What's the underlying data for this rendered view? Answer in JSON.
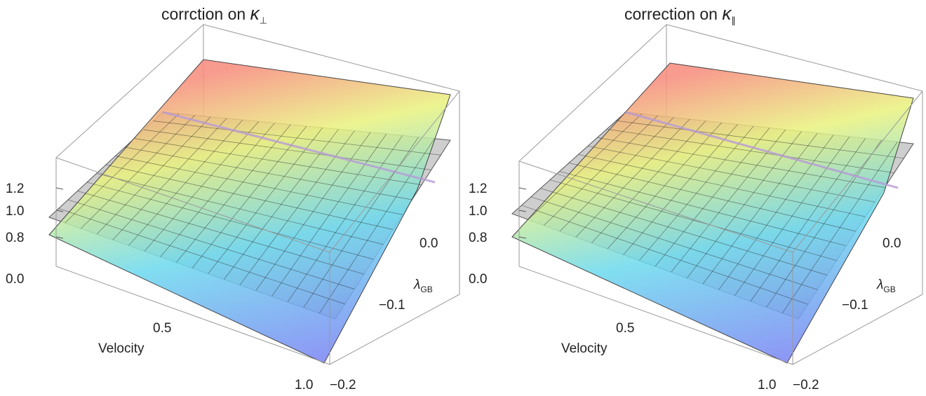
{
  "chart_data": [
    {
      "type": "surface3d",
      "title": "corrction on ",
      "title_symbol": "κ",
      "title_subscript": "⊥",
      "xlabel": "Velocity",
      "ylabel": "λ",
      "ylabel_subscript": "GB",
      "xlim": [
        0,
        1
      ],
      "ylim": [
        -0.2,
        0.05
      ],
      "zlim": [
        0.6,
        1.35
      ],
      "x_ticks": [
        "0.0",
        "0.5",
        "1.0"
      ],
      "y_ticks": [
        "0.0",
        "−0.1",
        "−0.2"
      ],
      "z_ticks": [
        "0.8",
        "1.0",
        "1.2"
      ],
      "reference_plane_z": 1.0,
      "surface_corners": {
        "v0_lminus0.2": 0.72,
        "v0_l0.05": 1.24,
        "v1_lminus0.2": 0.65,
        "v1_l0.05": 1.3
      },
      "colormap": [
        "#7b79f4",
        "#6bd9ee",
        "#e9f27d",
        "#f78a7b"
      ]
    },
    {
      "type": "surface3d",
      "title": "correction on ",
      "title_symbol": "κ",
      "title_subscript": "∥",
      "xlabel": "Velocity",
      "ylabel": "λ",
      "ylabel_subscript": "GB",
      "xlim": [
        0,
        1
      ],
      "ylim": [
        -0.2,
        0.05
      ],
      "zlim": [
        0.6,
        1.35
      ],
      "x_ticks": [
        "0.0",
        "0.5",
        "1.0"
      ],
      "y_ticks": [
        "0.0",
        "−0.1",
        "−0.2"
      ],
      "z_ticks": [
        "0.8",
        "1.0",
        "1.2"
      ],
      "reference_plane_z": 1.0,
      "surface_corners": {
        "v0_lminus0.2": 0.74,
        "v0_l0.05": 1.25,
        "v1_lminus0.2": 0.66,
        "v1_l0.05": 1.28
      },
      "colormap": [
        "#7b79f4",
        "#6bd9ee",
        "#e9f27d",
        "#f78a7b"
      ]
    }
  ]
}
